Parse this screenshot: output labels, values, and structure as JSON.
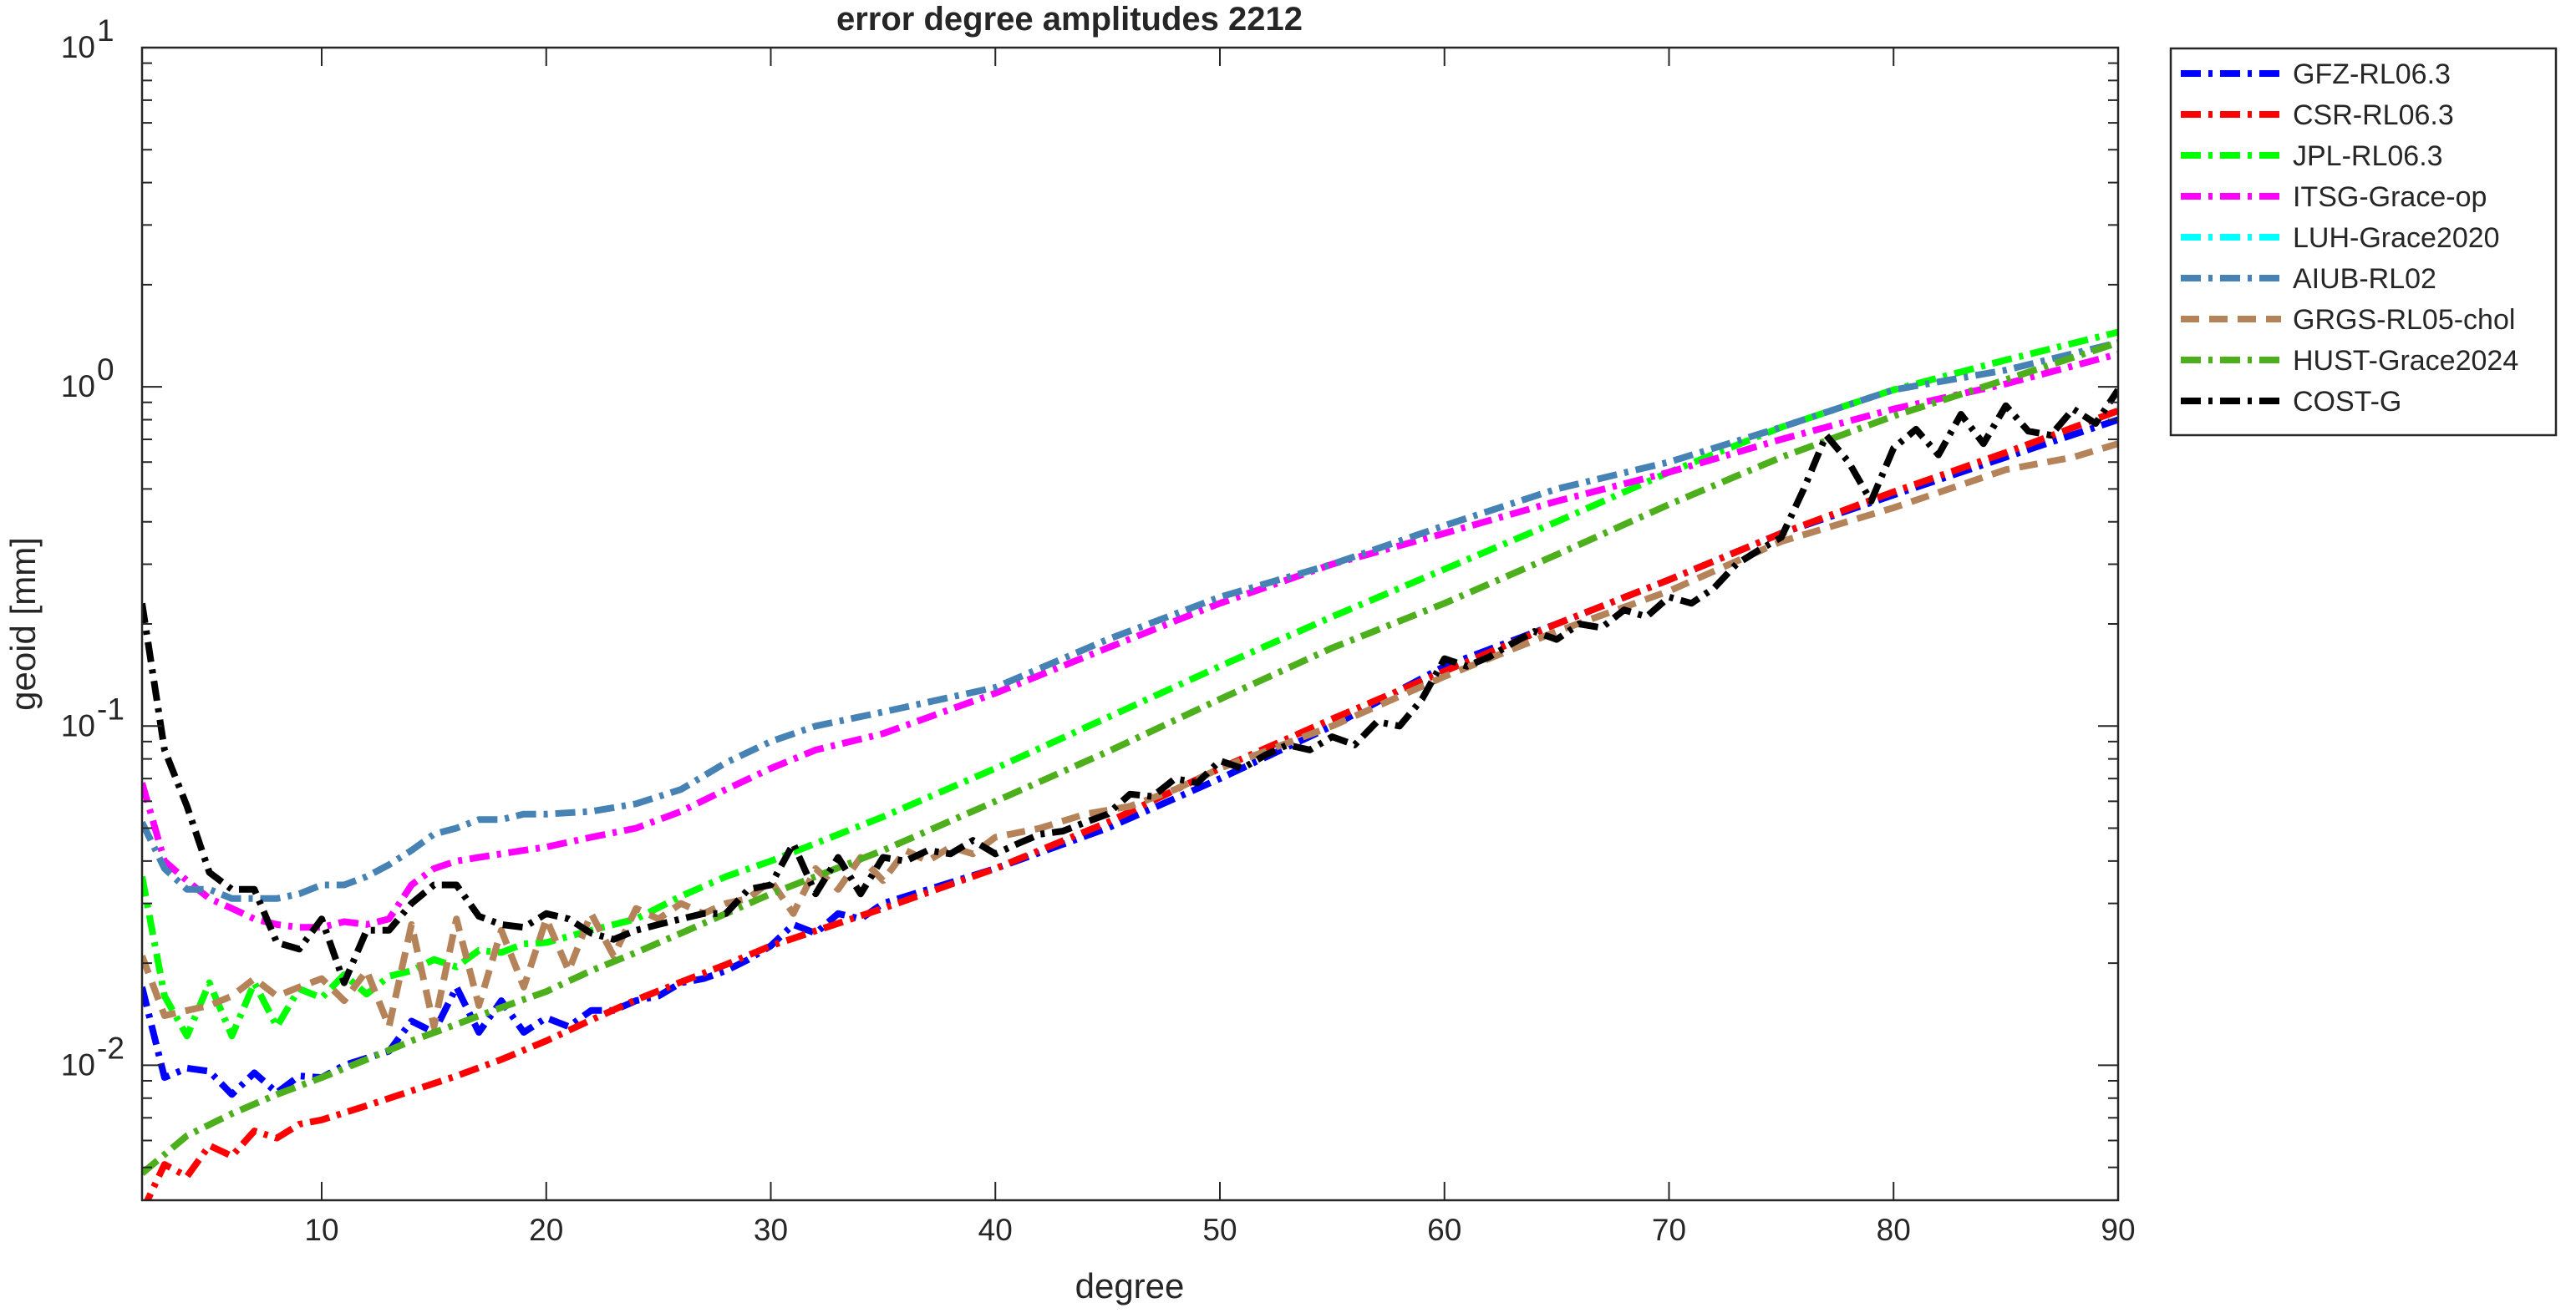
{
  "chart_data": {
    "type": "line",
    "title": "error degree amplitudes 2212",
    "xlabel": "degree",
    "ylabel": "geoid [mm]",
    "x_scale": "linear",
    "y_scale": "log",
    "xlim": [
      2,
      90
    ],
    "ylim": [
      0.004,
      10
    ],
    "x_ticks": [
      10,
      20,
      30,
      40,
      50,
      60,
      70,
      80,
      90
    ],
    "x_tick_labels": [
      "10",
      "20",
      "30",
      "40",
      "50",
      "60",
      "70",
      "80",
      "90"
    ],
    "y_ticks": [
      {
        "value": 0.01,
        "base": "10",
        "exp": "-2"
      },
      {
        "value": 0.1,
        "base": "10",
        "exp": "-1"
      },
      {
        "value": 1,
        "base": "10",
        "exp": "0"
      },
      {
        "value": 10,
        "base": "10",
        "exp": "1"
      }
    ],
    "grid": false,
    "box": true,
    "legend_position": "outside-right-top",
    "series": [
      {
        "name": "GFZ-RL06.3",
        "color": "#0000ff",
        "dash": "dashdot",
        "x": [
          2,
          3,
          4,
          5,
          6,
          7,
          8,
          9,
          10,
          11,
          12,
          13,
          14,
          15,
          16,
          17,
          18,
          19,
          20,
          21,
          22,
          23,
          24,
          25,
          26,
          27,
          28,
          29,
          30,
          31,
          32,
          33,
          34,
          35,
          40,
          45,
          50,
          55,
          60,
          65,
          70,
          75,
          80,
          85,
          90
        ],
        "y": [
          0.017,
          0.0092,
          0.0098,
          0.0096,
          0.0082,
          0.0095,
          0.0083,
          0.0093,
          0.0092,
          0.01,
          0.0105,
          0.011,
          0.0135,
          0.0125,
          0.017,
          0.0125,
          0.0155,
          0.0125,
          0.0138,
          0.013,
          0.0145,
          0.0145,
          0.0155,
          0.016,
          0.0175,
          0.018,
          0.019,
          0.0205,
          0.0225,
          0.026,
          0.0245,
          0.028,
          0.027,
          0.03,
          0.038,
          0.05,
          0.07,
          0.1,
          0.15,
          0.2,
          0.27,
          0.37,
          0.48,
          0.62,
          0.8
        ]
      },
      {
        "name": "CSR-RL06.3",
        "color": "#ff0000",
        "dash": "dashdot",
        "x": [
          2,
          3,
          4,
          5,
          6,
          7,
          8,
          9,
          10,
          12,
          14,
          16,
          18,
          20,
          22,
          24,
          26,
          28,
          30,
          35,
          40,
          45,
          50,
          55,
          60,
          65,
          70,
          75,
          80,
          85,
          90
        ],
        "y": [
          0.0037,
          0.0051,
          0.0047,
          0.0058,
          0.0054,
          0.0064,
          0.0061,
          0.0067,
          0.0069,
          0.0076,
          0.0084,
          0.0093,
          0.0104,
          0.0118,
          0.0136,
          0.0156,
          0.0176,
          0.0198,
          0.0225,
          0.029,
          0.038,
          0.052,
          0.075,
          0.105,
          0.145,
          0.2,
          0.27,
          0.37,
          0.49,
          0.64,
          0.85
        ]
      },
      {
        "name": "JPL-RL06.3",
        "color": "#00ff00",
        "dash": "dashdot",
        "x": [
          2,
          3,
          4,
          5,
          6,
          7,
          8,
          9,
          10,
          11,
          12,
          13,
          14,
          15,
          16,
          17,
          18,
          19,
          20,
          22,
          24,
          26,
          28,
          30,
          35,
          40,
          45,
          50,
          55,
          60,
          65,
          70,
          75,
          80,
          85,
          90
        ],
        "y": [
          0.036,
          0.016,
          0.0122,
          0.0175,
          0.0122,
          0.0175,
          0.013,
          0.0168,
          0.0158,
          0.0185,
          0.0162,
          0.0183,
          0.019,
          0.0205,
          0.0195,
          0.0218,
          0.0215,
          0.0228,
          0.023,
          0.025,
          0.027,
          0.0315,
          0.036,
          0.04,
          0.054,
          0.075,
          0.106,
          0.15,
          0.21,
          0.29,
          0.4,
          0.56,
          0.76,
          0.98,
          1.2,
          1.45
        ]
      },
      {
        "name": "ITSG-Grace-op",
        "color": "#ff00ff",
        "dash": "dashdot",
        "x": [
          2,
          3,
          4,
          5,
          6,
          7,
          8,
          9,
          10,
          11,
          12,
          13,
          14,
          15,
          16,
          17,
          18,
          19,
          20,
          22,
          24,
          26,
          28,
          30,
          32,
          35,
          40,
          45,
          50,
          55,
          60,
          65,
          70,
          75,
          80,
          85,
          90
        ],
        "y": [
          0.068,
          0.04,
          0.035,
          0.031,
          0.029,
          0.027,
          0.026,
          0.0255,
          0.0255,
          0.0265,
          0.026,
          0.027,
          0.034,
          0.038,
          0.04,
          0.041,
          0.042,
          0.043,
          0.044,
          0.047,
          0.05,
          0.056,
          0.065,
          0.075,
          0.085,
          0.095,
          0.125,
          0.17,
          0.23,
          0.3,
          0.37,
          0.46,
          0.56,
          0.7,
          0.86,
          1.02,
          1.25
        ]
      },
      {
        "name": "LUH-Grace2020",
        "color": "#00ffff",
        "dash": "dashdot",
        "x": [],
        "y": []
      },
      {
        "name": "AIUB-RL02",
        "color": "#4682b4",
        "dash": "dashdot",
        "x": [
          2,
          3,
          4,
          5,
          6,
          7,
          8,
          9,
          10,
          11,
          12,
          13,
          14,
          15,
          16,
          17,
          18,
          19,
          20,
          22,
          24,
          26,
          28,
          30,
          32,
          35,
          40,
          45,
          50,
          55,
          60,
          65,
          70,
          75,
          80,
          85,
          90
        ],
        "y": [
          0.052,
          0.038,
          0.033,
          0.033,
          0.031,
          0.031,
          0.031,
          0.032,
          0.034,
          0.034,
          0.036,
          0.039,
          0.043,
          0.048,
          0.05,
          0.053,
          0.053,
          0.055,
          0.055,
          0.056,
          0.059,
          0.065,
          0.078,
          0.09,
          0.1,
          0.11,
          0.13,
          0.18,
          0.24,
          0.3,
          0.39,
          0.5,
          0.6,
          0.76,
          0.98,
          1.12,
          1.35
        ]
      },
      {
        "name": "GRGS-RL05-chol",
        "color": "#b5835a",
        "dash": "dashed",
        "x": [
          2,
          3,
          4,
          5,
          6,
          7,
          8,
          9,
          10,
          11,
          12,
          13,
          14,
          15,
          16,
          17,
          18,
          19,
          20,
          21,
          22,
          23,
          24,
          25,
          26,
          27,
          28,
          29,
          30,
          31,
          32,
          33,
          34,
          35,
          36,
          37,
          38,
          39,
          40,
          42,
          44,
          46,
          48,
          50,
          55,
          60,
          65,
          70,
          75,
          80,
          85,
          88,
          90
        ],
        "y": [
          0.021,
          0.014,
          0.0145,
          0.015,
          0.016,
          0.018,
          0.016,
          0.017,
          0.018,
          0.0155,
          0.019,
          0.013,
          0.026,
          0.013,
          0.027,
          0.015,
          0.025,
          0.017,
          0.027,
          0.019,
          0.028,
          0.021,
          0.029,
          0.027,
          0.03,
          0.028,
          0.03,
          0.031,
          0.035,
          0.028,
          0.038,
          0.033,
          0.041,
          0.035,
          0.043,
          0.04,
          0.044,
          0.042,
          0.047,
          0.05,
          0.055,
          0.058,
          0.065,
          0.075,
          0.1,
          0.14,
          0.19,
          0.25,
          0.35,
          0.44,
          0.57,
          0.62,
          0.68
        ]
      },
      {
        "name": "HUST-Grace2024",
        "color": "#4daf1c",
        "dash": "dashdot",
        "x": [
          2,
          4,
          6,
          8,
          10,
          12,
          14,
          16,
          18,
          20,
          22,
          24,
          26,
          28,
          30,
          35,
          40,
          45,
          50,
          55,
          60,
          65,
          70,
          75,
          80,
          85,
          90
        ],
        "y": [
          0.0048,
          0.0062,
          0.0072,
          0.0082,
          0.0092,
          0.0104,
          0.0118,
          0.0132,
          0.0148,
          0.0165,
          0.019,
          0.0215,
          0.0245,
          0.028,
          0.032,
          0.043,
          0.06,
          0.084,
          0.12,
          0.17,
          0.23,
          0.32,
          0.45,
          0.62,
          0.82,
          1.05,
          1.35
        ]
      },
      {
        "name": "COST-G",
        "color": "#000000",
        "dash": "dashdot",
        "x": [
          2,
          3,
          4,
          5,
          6,
          7,
          8,
          9,
          10,
          11,
          12,
          13,
          14,
          15,
          16,
          17,
          18,
          19,
          20,
          21,
          22,
          23,
          24,
          25,
          26,
          27,
          28,
          29,
          30,
          31,
          32,
          33,
          34,
          35,
          36,
          37,
          38,
          39,
          40,
          41,
          42,
          43,
          44,
          45,
          46,
          47,
          48,
          49,
          50,
          51,
          52,
          53,
          54,
          55,
          56,
          57,
          58,
          59,
          60,
          61,
          62,
          63,
          64,
          65,
          66,
          67,
          68,
          69,
          70,
          71,
          72,
          73,
          74,
          75,
          76,
          77,
          78,
          79,
          80,
          81,
          82,
          83,
          84,
          85,
          86,
          87,
          88,
          89,
          90
        ],
        "y": [
          0.23,
          0.085,
          0.058,
          0.037,
          0.033,
          0.033,
          0.023,
          0.022,
          0.027,
          0.0175,
          0.025,
          0.025,
          0.03,
          0.034,
          0.034,
          0.0275,
          0.026,
          0.0255,
          0.028,
          0.027,
          0.0245,
          0.0235,
          0.025,
          0.026,
          0.027,
          0.028,
          0.028,
          0.033,
          0.034,
          0.045,
          0.032,
          0.041,
          0.032,
          0.041,
          0.04,
          0.043,
          0.042,
          0.046,
          0.042,
          0.045,
          0.048,
          0.049,
          0.052,
          0.055,
          0.063,
          0.062,
          0.07,
          0.068,
          0.079,
          0.075,
          0.082,
          0.088,
          0.085,
          0.093,
          0.088,
          0.103,
          0.1,
          0.12,
          0.158,
          0.15,
          0.16,
          0.175,
          0.19,
          0.18,
          0.2,
          0.195,
          0.22,
          0.21,
          0.24,
          0.23,
          0.255,
          0.3,
          0.33,
          0.36,
          0.5,
          0.72,
          0.6,
          0.46,
          0.66,
          0.75,
          0.63,
          0.83,
          0.68,
          0.88,
          0.74,
          0.72,
          0.86,
          0.78,
          0.98
        ]
      }
    ]
  }
}
